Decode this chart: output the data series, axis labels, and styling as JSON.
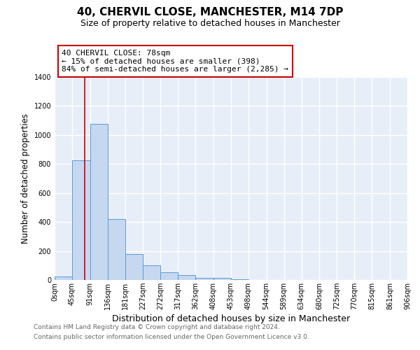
{
  "title": "40, CHERVIL CLOSE, MANCHESTER, M14 7DP",
  "subtitle": "Size of property relative to detached houses in Manchester",
  "xlabel": "Distribution of detached houses by size in Manchester",
  "ylabel": "Number of detached properties",
  "bar_color": "#c5d8f0",
  "bar_edge_color": "#5b9bd5",
  "bar_heights": [
    25,
    825,
    1075,
    420,
    180,
    100,
    55,
    35,
    15,
    15,
    5,
    0,
    0,
    0,
    0,
    0,
    0,
    0,
    0,
    0
  ],
  "bin_edges": [
    0,
    45,
    91,
    136,
    181,
    227,
    272,
    317,
    362,
    408,
    453,
    498,
    544,
    589,
    634,
    680,
    725,
    770,
    815,
    861,
    906
  ],
  "tick_labels": [
    "0sqm",
    "45sqm",
    "91sqm",
    "136sqm",
    "181sqm",
    "227sqm",
    "272sqm",
    "317sqm",
    "362sqm",
    "408sqm",
    "453sqm",
    "498sqm",
    "544sqm",
    "589sqm",
    "634sqm",
    "680sqm",
    "725sqm",
    "770sqm",
    "815sqm",
    "861sqm",
    "906sqm"
  ],
  "ylim": [
    0,
    1400
  ],
  "yticks": [
    0,
    200,
    400,
    600,
    800,
    1000,
    1200,
    1400
  ],
  "property_size": 78,
  "property_line_color": "#cc0000",
  "annotation_line1": "40 CHERVIL CLOSE: 78sqm",
  "annotation_line2": "← 15% of detached houses are smaller (398)",
  "annotation_line3": "84% of semi-detached houses are larger (2,285) →",
  "footer_line1": "Contains HM Land Registry data © Crown copyright and database right 2024.",
  "footer_line2": "Contains public sector information licensed under the Open Government Licence v3.0.",
  "fig_bg_color": "#ffffff",
  "axes_bg_color": "#e8eef8",
  "grid_color": "#ffffff",
  "title_fontsize": 11,
  "subtitle_fontsize": 9,
  "tick_fontsize": 7,
  "ylabel_fontsize": 8.5,
  "xlabel_fontsize": 9,
  "footer_fontsize": 6.5,
  "annotation_fontsize": 8
}
